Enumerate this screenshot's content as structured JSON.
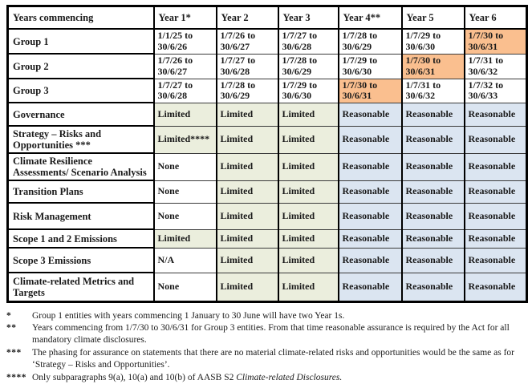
{
  "table": {
    "header": {
      "col0": "Years commencing",
      "years": [
        "Year 1*",
        "Year 2",
        "Year 3",
        "Year 4**",
        "Year 5",
        "Year 6"
      ]
    },
    "group_rows": [
      {
        "label": "Group 1",
        "dates": [
          "1/1/25 to 30/6/26",
          "1/7/26 to 30/6/27",
          "1/7/27 to 30/6/28",
          "1/7/28 to 30/6/29",
          "1/7/29 to 30/6/30",
          "1/7/30 to 30/6/31"
        ],
        "highlight_index": 5
      },
      {
        "label": "Group 2",
        "dates": [
          "1/7/26 to 30/6/27",
          "1/7/27 to 30/6/28",
          "1/7/28 to 30/6/29",
          "1/7/29 to 30/6/30",
          "1/7/30 to 30/6/31",
          "1/7/31 to 30/6/32"
        ],
        "highlight_index": 4
      },
      {
        "label": "Group 3",
        "dates": [
          "1/7/27 to 30/6/28",
          "1/7/28 to 30/6/29",
          "1/7/29 to 30/6/30",
          "1/7/30 to 30/6/31",
          "1/7/31 to 30/6/32",
          "1/7/32 to 30/6/33"
        ],
        "highlight_index": 3
      }
    ],
    "assurance_rows": [
      {
        "label": "Governance",
        "values": [
          "Limited",
          "Limited",
          "Limited",
          "Reasonable",
          "Reasonable",
          "Reasonable"
        ]
      },
      {
        "label": "Strategy – Risks and Opportunities ***",
        "values": [
          "Limited****",
          "Limited",
          "Limited",
          "Reasonable",
          "Reasonable",
          "Reasonable"
        ]
      },
      {
        "label": "Climate Resilience Assessments/ Scenario Analysis",
        "values": [
          "None",
          "Limited",
          "Limited",
          "Reasonable",
          "Reasonable",
          "Reasonable"
        ]
      },
      {
        "label": "Transition Plans",
        "values": [
          "None",
          "Limited",
          "Limited",
          "Reasonable",
          "Reasonable",
          "Reasonable"
        ]
      },
      {
        "label": "Risk Management",
        "values": [
          "None",
          "Limited",
          "Limited",
          "Reasonable",
          "Reasonable",
          "Reasonable"
        ]
      },
      {
        "label": "Scope 1 and 2 Emissions",
        "values": [
          "Limited",
          "Limited",
          "Limited",
          "Reasonable",
          "Reasonable",
          "Reasonable"
        ]
      },
      {
        "label": "Scope 3 Emissions",
        "values": [
          "N/A",
          "Limited",
          "Limited",
          "Reasonable",
          "Reasonable",
          "Reasonable"
        ]
      },
      {
        "label": "Climate-related Metrics and Targets",
        "values": [
          "None",
          "Limited",
          "Limited",
          "Reasonable",
          "Reasonable",
          "Reasonable"
        ]
      }
    ]
  },
  "footnotes": [
    {
      "marker": "*",
      "text": "Group 1 entities with years commencing 1 January to 30 June will have two Year 1s."
    },
    {
      "marker": "**",
      "text": "Years commencing from 1/7/30 to 30/6/31 for Group 3 entities. From that time reasonable assurance is required by the Act for all mandatory climate disclosures."
    },
    {
      "marker": "***",
      "text": "The phasing for assurance on statements that there are no material climate-related risks and opportunities would be the same as for ‘Strategy – Risks and Opportunities’."
    },
    {
      "marker": "****",
      "text": "Only subparagraphs 9(a), 10(a) and 10(b) of AASB S2 ",
      "italic_text": "Climate-related Disclosures."
    }
  ],
  "colors": {
    "highlight_orange": "#FABF8F",
    "limited_green": "#EBEEDD",
    "reasonable_blue": "#DBE5F1",
    "border": "#000000",
    "text": "#1a1a1a"
  }
}
